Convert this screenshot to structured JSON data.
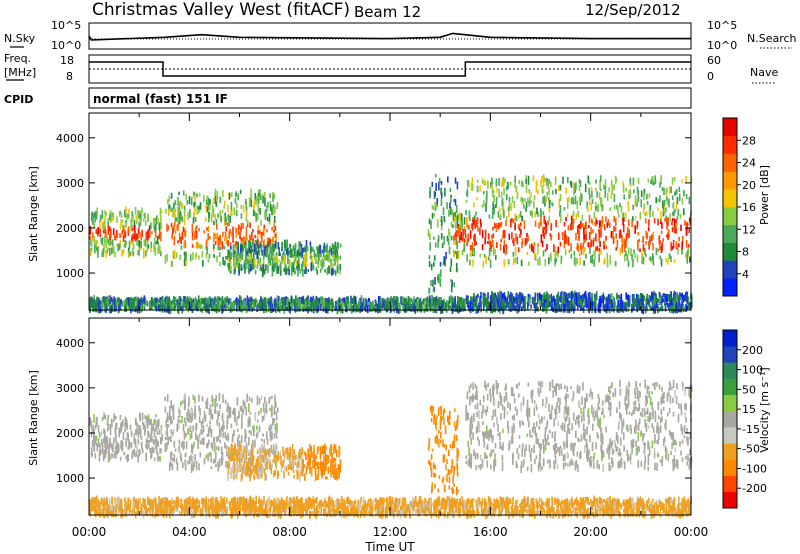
{
  "header": {
    "radar": "Christmas Valley West (fitACF)",
    "beam": "Beam 12",
    "date": "12/Sep/2012"
  },
  "noise_panel": {
    "left_label": "N.Sky",
    "left_ticks": [
      "10^5",
      "10^0"
    ],
    "right_ticks": [
      "10^5",
      "10^0"
    ],
    "right_label": "N.Search"
  },
  "freq_panel": {
    "left_label_1": "Freq.",
    "left_label_2": "[MHz]",
    "left_ticks": [
      "18",
      "8"
    ],
    "right_ticks": [
      "60",
      "0"
    ],
    "right_label": "Nave"
  },
  "cpid": {
    "label": "CPID",
    "value": "normal (fast) 151 IF"
  },
  "axes": {
    "ylabel": "Slant Range [km]",
    "xlabel": "Time UT",
    "y_ticks": [
      "4000",
      "3000",
      "2000",
      "1000"
    ],
    "x_ticks": [
      "00:00",
      "04:00",
      "08:00",
      "12:00",
      "16:00",
      "20:00",
      "00:00"
    ]
  },
  "colorbars": {
    "power": {
      "label": "Power [dB]",
      "ticks": [
        "28",
        "24",
        "20",
        "16",
        "12",
        "8",
        "4"
      ],
      "colors": [
        "#0022ff",
        "#2244bb",
        "#1f8a3a",
        "#4aaa5a",
        "#88cc44",
        "#f5c400",
        "#ff9a00",
        "#ff6200",
        "#ff2a00",
        "#e60000"
      ]
    },
    "velocity": {
      "label": "Velocity [m s⁻¹]",
      "ticks": [
        "200",
        "100",
        "50",
        "15",
        "-15",
        "-50",
        "-100",
        "-200"
      ],
      "colors": [
        "#ee0000",
        "#ff4400",
        "#ff8800",
        "#f0a020",
        "#c8c8c0",
        "#a8a8a0",
        "#88cc44",
        "#3aa03a",
        "#2a8a5a",
        "#2244bb",
        "#0022cc"
      ]
    }
  },
  "chart_data": [
    {
      "type": "line",
      "title": "N.Sky / N.Search",
      "x_range_hours": [
        0,
        24
      ],
      "series": [
        {
          "x": [
            0,
            0.1,
            3,
            4.5,
            6,
            12,
            14,
            14.5,
            16,
            20,
            24
          ],
          "y": [
            0.5,
            0.35,
            0.45,
            0.55,
            0.45,
            0.4,
            0.45,
            0.6,
            0.45,
            0.4,
            0.4
          ]
        }
      ]
    },
    {
      "type": "line",
      "title": "Freq. / Nave",
      "x_range_hours": [
        0,
        24
      ],
      "ylim": [
        8,
        18
      ],
      "series": [
        {
          "x": [
            0,
            2.95,
            2.95,
            15,
            15,
            24
          ],
          "y": [
            15.5,
            15.5,
            10.5,
            10.5,
            15.5,
            15.5
          ]
        }
      ]
    },
    {
      "type": "heatmap",
      "panel": "power",
      "xlabel": "Time UT",
      "ylabel": "Slant Range [km]",
      "x_range_hours": [
        0,
        24
      ],
      "y_range_km": [
        180,
        4550
      ],
      "zlabel": "Power [dB]",
      "zlim": [
        0,
        30
      ],
      "regions": [
        {
          "t": [
            0.0,
            2.9
          ],
          "rng": [
            1400,
            2400
          ],
          "core": [
            1750,
            2000
          ],
          "p": 24
        },
        {
          "t": [
            3.0,
            7.5
          ],
          "rng": [
            1200,
            2800
          ],
          "core": [
            1600,
            2100
          ],
          "p": 22
        },
        {
          "t": [
            5.5,
            10.0
          ],
          "rng": [
            1000,
            1650
          ],
          "core": [
            1150,
            1400
          ],
          "p": 12
        },
        {
          "t": [
            13.5,
            14.7
          ],
          "rng": [
            600,
            3200
          ],
          "core": [
            1500,
            2500
          ],
          "p": 10
        },
        {
          "t": [
            14.5,
            15.0
          ],
          "rng": [
            1400,
            2300
          ],
          "core": [
            1700,
            2000
          ],
          "p": 24
        },
        {
          "t": [
            15.0,
            24.0
          ],
          "rng": [
            1200,
            3100
          ],
          "core": [
            1500,
            2200
          ],
          "p": 24
        },
        {
          "t": [
            0.0,
            15.0
          ],
          "rng": [
            180,
            420
          ],
          "core": [
            250,
            350
          ],
          "p": 8
        },
        {
          "t": [
            15.0,
            24.0
          ],
          "rng": [
            180,
            520
          ],
          "core": [
            250,
            350
          ],
          "p": 5
        }
      ]
    },
    {
      "type": "heatmap",
      "panel": "velocity",
      "xlabel": "Time UT",
      "ylabel": "Slant Range [km]",
      "x_range_hours": [
        0,
        24
      ],
      "y_range_km": [
        180,
        4550
      ],
      "zlabel": "Velocity [m s⁻¹]",
      "zlim": [
        -200,
        200
      ],
      "regions": [
        {
          "t": [
            0.0,
            2.9
          ],
          "rng": [
            1400,
            2400
          ],
          "v": 0
        },
        {
          "t": [
            3.0,
            7.5
          ],
          "rng": [
            1200,
            2800
          ],
          "v": 0
        },
        {
          "t": [
            5.5,
            8.5
          ],
          "rng": [
            1000,
            1700
          ],
          "v": -60
        },
        {
          "t": [
            8.5,
            10.0
          ],
          "rng": [
            1000,
            1700
          ],
          "v": -100
        },
        {
          "t": [
            13.5,
            14.7
          ],
          "rng": [
            700,
            2600
          ],
          "v": -100
        },
        {
          "t": [
            15.0,
            24.0
          ],
          "rng": [
            1200,
            3100
          ],
          "v": 0
        },
        {
          "t": [
            0.0,
            24.0
          ],
          "rng": [
            180,
            520
          ],
          "v": -70
        }
      ]
    }
  ]
}
